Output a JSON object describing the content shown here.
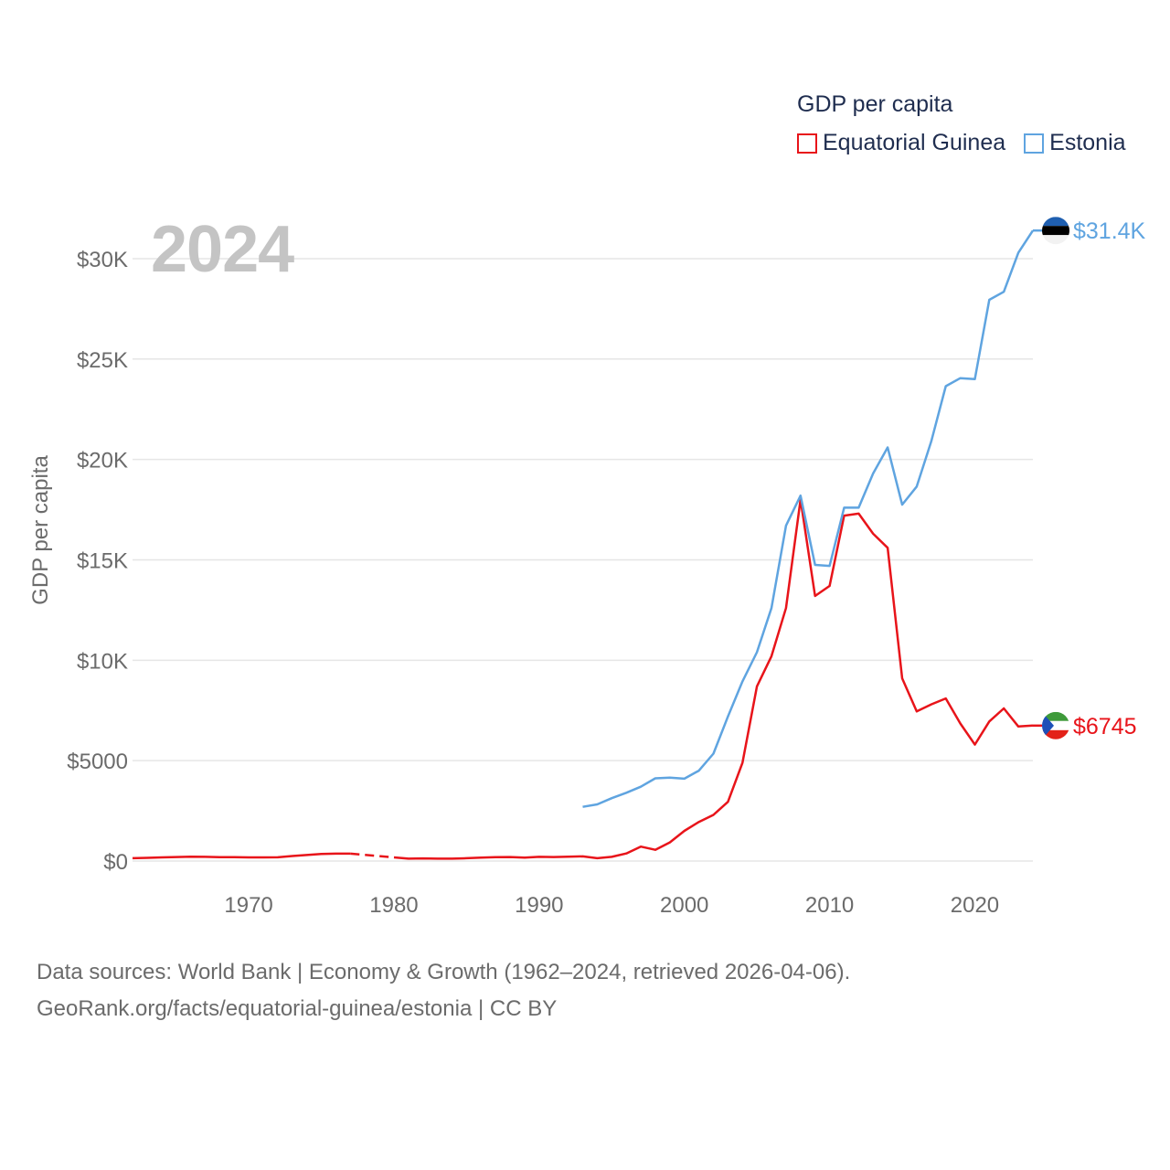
{
  "year_label": "2024",
  "legend": {
    "title": "GDP per capita",
    "items": [
      {
        "name": "Equatorial Guinea",
        "color": "#e8141a"
      },
      {
        "name": "Estonia",
        "color": "#5fa4e0"
      }
    ]
  },
  "sources": {
    "line1": "Data sources: World Bank | Economy & Growth (1962–2024, retrieved 2026-04-06).",
    "line2": "GeoRank.org/facts/equatorial-guinea/estonia | CC BY"
  },
  "chart_data": {
    "type": "line",
    "title": "GDP per capita",
    "ylabel": "GDP per capita",
    "xlabel": "",
    "xlim": [
      1962,
      2024
    ],
    "ylim": [
      0,
      31500
    ],
    "y_ticks": [
      0,
      5000,
      10000,
      15000,
      20000,
      25000,
      30000
    ],
    "y_tick_labels": [
      "$0",
      "$5000",
      "$10K",
      "$15K",
      "$20K",
      "$25K",
      "$30K"
    ],
    "x_ticks": [
      1970,
      1980,
      1990,
      2000,
      2010,
      2020
    ],
    "x_tick_labels": [
      "1970",
      "1980",
      "1990",
      "2000",
      "2010",
      "2020"
    ],
    "grid": true,
    "legend_position": "top-right",
    "series": [
      {
        "name": "Equatorial Guinea",
        "color": "#e8141a",
        "end_label": "$6745",
        "gap_years": [
          1977,
          1980
        ],
        "points": [
          [
            1962,
            140
          ],
          [
            1963,
            160
          ],
          [
            1964,
            180
          ],
          [
            1965,
            200
          ],
          [
            1966,
            215
          ],
          [
            1967,
            210
          ],
          [
            1968,
            190
          ],
          [
            1969,
            190
          ],
          [
            1970,
            180
          ],
          [
            1971,
            180
          ],
          [
            1972,
            185
          ],
          [
            1973,
            250
          ],
          [
            1974,
            300
          ],
          [
            1975,
            350
          ],
          [
            1976,
            370
          ],
          [
            1977,
            370
          ],
          [
            1980,
            180
          ],
          [
            1981,
            120
          ],
          [
            1982,
            130
          ],
          [
            1983,
            120
          ],
          [
            1984,
            120
          ],
          [
            1985,
            140
          ],
          [
            1986,
            170
          ],
          [
            1987,
            190
          ],
          [
            1988,
            200
          ],
          [
            1989,
            170
          ],
          [
            1990,
            210
          ],
          [
            1991,
            200
          ],
          [
            1992,
            220
          ],
          [
            1993,
            230
          ],
          [
            1994,
            140
          ],
          [
            1995,
            210
          ],
          [
            1996,
            380
          ],
          [
            1997,
            720
          ],
          [
            1998,
            560
          ],
          [
            1999,
            930
          ],
          [
            2000,
            1500
          ],
          [
            2001,
            1950
          ],
          [
            2002,
            2300
          ],
          [
            2003,
            2950
          ],
          [
            2004,
            4900
          ],
          [
            2005,
            8700
          ],
          [
            2006,
            10200
          ],
          [
            2007,
            12600
          ],
          [
            2008,
            18000
          ],
          [
            2009,
            13200
          ],
          [
            2010,
            13700
          ],
          [
            2011,
            17200
          ],
          [
            2012,
            17300
          ],
          [
            2013,
            16300
          ],
          [
            2014,
            15600
          ],
          [
            2015,
            9100
          ],
          [
            2016,
            7450
          ],
          [
            2017,
            7800
          ],
          [
            2018,
            8100
          ],
          [
            2019,
            6850
          ],
          [
            2020,
            5800
          ],
          [
            2021,
            6950
          ],
          [
            2022,
            7600
          ],
          [
            2023,
            6700
          ],
          [
            2024,
            6745
          ]
        ]
      },
      {
        "name": "Estonia",
        "color": "#5fa4e0",
        "end_label": "$31.4K",
        "points": [
          [
            1993,
            2700
          ],
          [
            1994,
            2820
          ],
          [
            1995,
            3130
          ],
          [
            1996,
            3400
          ],
          [
            1997,
            3700
          ],
          [
            1998,
            4120
          ],
          [
            1999,
            4150
          ],
          [
            2000,
            4100
          ],
          [
            2001,
            4500
          ],
          [
            2002,
            5350
          ],
          [
            2003,
            7200
          ],
          [
            2004,
            8950
          ],
          [
            2005,
            10400
          ],
          [
            2006,
            12600
          ],
          [
            2007,
            16700
          ],
          [
            2008,
            18200
          ],
          [
            2009,
            14750
          ],
          [
            2010,
            14700
          ],
          [
            2011,
            17600
          ],
          [
            2012,
            17600
          ],
          [
            2013,
            19300
          ],
          [
            2014,
            20600
          ],
          [
            2015,
            17750
          ],
          [
            2016,
            18650
          ],
          [
            2017,
            20900
          ],
          [
            2018,
            23650
          ],
          [
            2019,
            24050
          ],
          [
            2020,
            24000
          ],
          [
            2021,
            27950
          ],
          [
            2022,
            28350
          ],
          [
            2023,
            30300
          ],
          [
            2024,
            31400
          ]
        ]
      }
    ]
  }
}
